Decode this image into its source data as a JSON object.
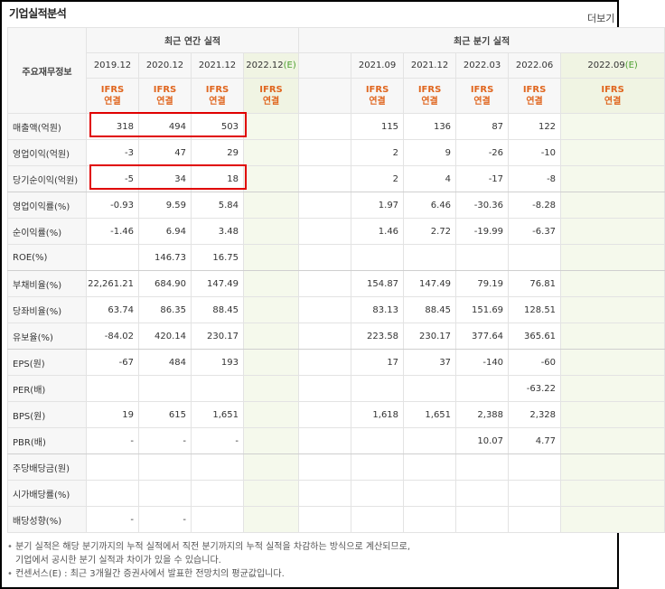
{
  "section_title": "기업실적분석",
  "more_link": "더보기",
  "header": {
    "col_label": "주요재무정보",
    "annual_group": "최근 연간 실적",
    "quarter_group": "최근 분기 실적",
    "annual_periods": [
      {
        "label": "2019.12",
        "suffix": ""
      },
      {
        "label": "2020.12",
        "suffix": ""
      },
      {
        "label": "2021.12",
        "suffix": ""
      },
      {
        "label": "2022.12",
        "suffix": "(E)"
      }
    ],
    "quarter_periods": [
      {
        "label": "2021.09",
        "suffix": ""
      },
      {
        "label": "2021.12",
        "suffix": ""
      },
      {
        "label": "2022.03",
        "suffix": ""
      },
      {
        "label": "2022.06",
        "suffix": ""
      },
      {
        "label": "2022.09",
        "suffix": "(E)"
      }
    ],
    "standard_top": "IFRS",
    "standard_bottom": "연결"
  },
  "rows": [
    {
      "label": "매출액(억원)",
      "annual": [
        "318",
        "494",
        "503",
        ""
      ],
      "quarter": [
        "115",
        "136",
        "87",
        "122",
        ""
      ]
    },
    {
      "label": "영업이익(억원)",
      "annual": [
        "-3",
        "47",
        "29",
        ""
      ],
      "quarter": [
        "2",
        "9",
        "-26",
        "-10",
        ""
      ]
    },
    {
      "label": "당기순이익(억원)",
      "annual": [
        "-5",
        "34",
        "18",
        ""
      ],
      "quarter": [
        "2",
        "4",
        "-17",
        "-8",
        ""
      ]
    },
    {
      "label": "영업이익률(%)",
      "annual": [
        "-0.93",
        "9.59",
        "5.84",
        ""
      ],
      "quarter": [
        "1.97",
        "6.46",
        "-30.36",
        "-8.28",
        ""
      ]
    },
    {
      "label": "순이익률(%)",
      "annual": [
        "-1.46",
        "6.94",
        "3.48",
        ""
      ],
      "quarter": [
        "1.46",
        "2.72",
        "-19.99",
        "-6.37",
        ""
      ]
    },
    {
      "label": "ROE(%)",
      "annual": [
        "",
        "146.73",
        "16.75",
        ""
      ],
      "quarter": [
        "",
        "",
        "",
        "",
        ""
      ]
    },
    {
      "label": "부채비율(%)",
      "annual": [
        "22,261.21",
        "684.90",
        "147.49",
        ""
      ],
      "quarter": [
        "154.87",
        "147.49",
        "79.19",
        "76.81",
        ""
      ]
    },
    {
      "label": "당좌비율(%)",
      "annual": [
        "63.74",
        "86.35",
        "88.45",
        ""
      ],
      "quarter": [
        "83.13",
        "88.45",
        "151.69",
        "128.51",
        ""
      ]
    },
    {
      "label": "유보율(%)",
      "annual": [
        "-84.02",
        "420.14",
        "230.17",
        ""
      ],
      "quarter": [
        "223.58",
        "230.17",
        "377.64",
        "365.61",
        ""
      ]
    },
    {
      "label": "EPS(원)",
      "annual": [
        "-67",
        "484",
        "193",
        ""
      ],
      "quarter": [
        "17",
        "37",
        "-140",
        "-60",
        ""
      ]
    },
    {
      "label": "PER(배)",
      "annual": [
        "",
        "",
        "",
        ""
      ],
      "quarter": [
        "",
        "",
        "",
        "-63.22",
        ""
      ]
    },
    {
      "label": "BPS(원)",
      "annual": [
        "19",
        "615",
        "1,651",
        ""
      ],
      "quarter": [
        "1,618",
        "1,651",
        "2,388",
        "2,328",
        ""
      ]
    },
    {
      "label": "PBR(배)",
      "annual": [
        "-",
        "-",
        "-",
        ""
      ],
      "quarter": [
        "",
        "",
        "10.07",
        "4.77",
        ""
      ]
    },
    {
      "label": "주당배당금(원)",
      "annual": [
        "",
        "",
        "",
        ""
      ],
      "quarter": [
        "",
        "",
        "",
        "",
        ""
      ]
    },
    {
      "label": "시가배당률(%)",
      "annual": [
        "",
        "",
        "",
        ""
      ],
      "quarter": [
        "",
        "",
        "",
        "",
        ""
      ]
    },
    {
      "label": "배당성향(%)",
      "annual": [
        "-",
        "-",
        "",
        ""
      ],
      "quarter": [
        "",
        "",
        "",
        "",
        ""
      ]
    }
  ],
  "notes": [
    "분기 실적은 해당 분기까지의 누적 실적에서 직전 분기까지의 누적 실적을 차감하는 방식으로 계산되므로,",
    "기업에서 공시한 분기 실적과 차이가 있을 수 있습니다.",
    "컨센서스(E) : 최근 3개월간 증권사에서 발표한 전망치의 평균값입니다."
  ],
  "colors": {
    "negative": "#d20000",
    "accent": "#e0661f",
    "estimate": "#4a9e2e",
    "highlight": "#e00000"
  }
}
